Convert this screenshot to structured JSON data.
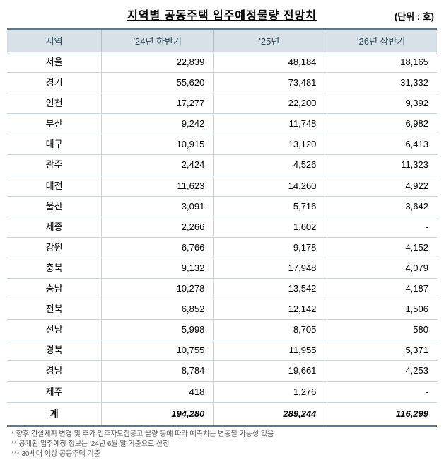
{
  "title": "지역별 공동주택 입주예정물량 전망치",
  "unit": "(단위 : 호)",
  "columns": [
    "지역",
    "'24년 하반기",
    "'25년",
    "'26년 상반기"
  ],
  "rows": [
    [
      "서울",
      "22,839",
      "48,184",
      "18,165"
    ],
    [
      "경기",
      "55,620",
      "73,481",
      "31,332"
    ],
    [
      "인천",
      "17,277",
      "22,200",
      "9,392"
    ],
    [
      "부산",
      "9,242",
      "11,748",
      "6,982"
    ],
    [
      "대구",
      "10,915",
      "13,120",
      "6,413"
    ],
    [
      "광주",
      "2,424",
      "4,526",
      "11,323"
    ],
    [
      "대전",
      "11,623",
      "14,260",
      "4,922"
    ],
    [
      "울산",
      "3,091",
      "5,716",
      "3,642"
    ],
    [
      "세종",
      "2,266",
      "1,602",
      "-"
    ],
    [
      "강원",
      "6,766",
      "9,178",
      "4,152"
    ],
    [
      "충북",
      "9,132",
      "17,948",
      "4,079"
    ],
    [
      "충남",
      "10,278",
      "13,542",
      "4,187"
    ],
    [
      "전북",
      "6,852",
      "12,142",
      "1,506"
    ],
    [
      "전남",
      "5,998",
      "8,705",
      "580"
    ],
    [
      "경북",
      "10,755",
      "11,955",
      "5,371"
    ],
    [
      "경남",
      "8,784",
      "19,661",
      "4,253"
    ],
    [
      "제주",
      "418",
      "1,276",
      "-"
    ]
  ],
  "total": [
    "계",
    "194,280",
    "289,244",
    "116,299"
  ],
  "footnotes": [
    "* 향후 건설계획 변경 및 추가 입주자모집공고 물량 등에 따라 예측치는 변동될 가능성 있음",
    "** 공개된 입주예정 정보는 '24년 6월 말 기준으로 산정",
    "*** 30세대 이상 공동주택 기준"
  ],
  "colors": {
    "header_bg": "#d9e1e8",
    "border_strong": "#5a7a8a",
    "border_light": "#c8d4dc",
    "background": "#ffffff"
  }
}
